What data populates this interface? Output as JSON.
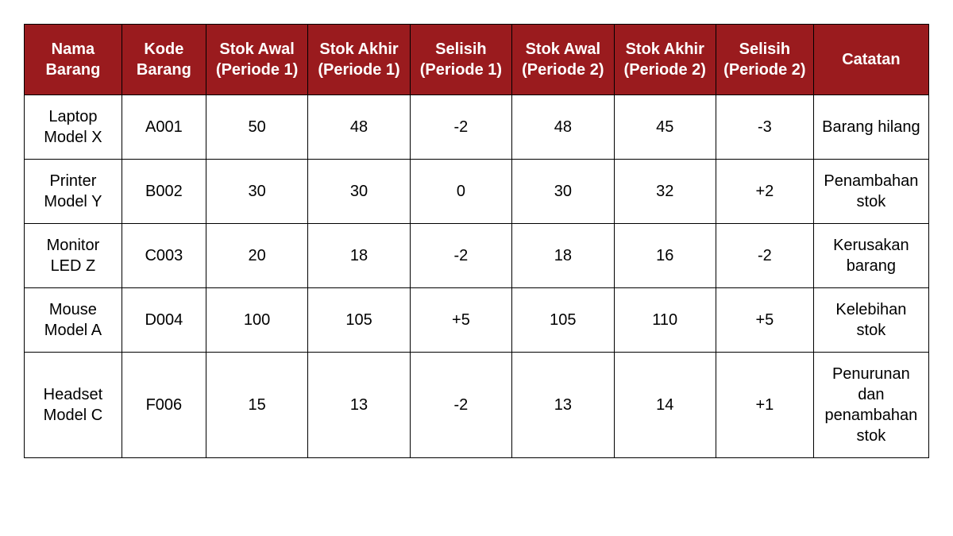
{
  "table": {
    "type": "table",
    "header_bg_color": "#9a1b1e",
    "header_text_color": "#ffffff",
    "cell_bg_color": "#ffffff",
    "cell_text_color": "#000000",
    "border_color": "#000000",
    "header_fontsize": 20,
    "cell_fontsize": 20,
    "columns": [
      "Nama Barang",
      "Kode Barang",
      "Stok Awal (Periode 1)",
      "Stok Akhir (Periode 1)",
      "Selisih (Periode 1)",
      "Stok Awal (Periode 2)",
      "Stok Akhir (Periode 2)",
      "Selisih (Periode 2)",
      "Catatan"
    ],
    "column_widths_pct": [
      11,
      9.5,
      11.5,
      11.5,
      11.5,
      11.5,
      11.5,
      11,
      13
    ],
    "rows": [
      [
        "Laptop Model X",
        "A001",
        "50",
        "48",
        "-2",
        "48",
        "45",
        "-3",
        "Barang hilang"
      ],
      [
        "Printer Model Y",
        "B002",
        "30",
        "30",
        "0",
        "30",
        "32",
        "+2",
        "Penambahan stok"
      ],
      [
        "Monitor LED Z",
        "C003",
        "20",
        "18",
        "-2",
        "18",
        "16",
        "-2",
        "Kerusakan barang"
      ],
      [
        "Mouse Model A",
        "D004",
        "100",
        "105",
        "+5",
        "105",
        "110",
        "+5",
        "Kelebihan stok"
      ],
      [
        "Headset Model C",
        "F006",
        "15",
        "13",
        "-2",
        "13",
        "14",
        "+1",
        "Penurunan dan penambahan stok"
      ]
    ]
  }
}
